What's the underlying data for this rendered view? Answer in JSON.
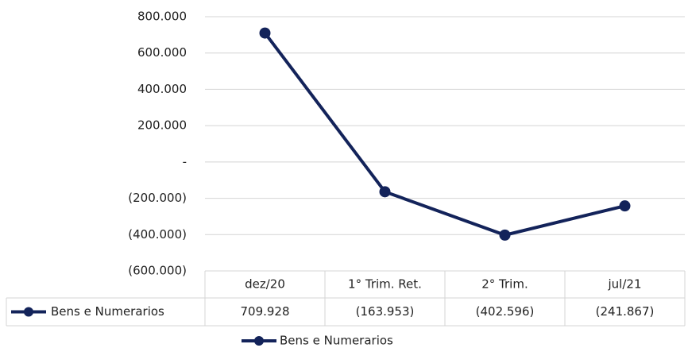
{
  "chart_data": {
    "type": "line",
    "categories": [
      "dez/20",
      "1° Trim. Ret.",
      "2° Trim.",
      "jul/21"
    ],
    "series": [
      {
        "name": "Bens e Numerarios",
        "color": "#13235a",
        "values": [
          709928,
          -163953,
          -402596,
          -241867
        ],
        "value_labels": [
          "709.928",
          "(163.953)",
          "(402.596)",
          "(241.867)"
        ]
      }
    ],
    "ylim": [
      -600000,
      800000
    ],
    "yticks": [
      {
        "value": -600000,
        "label": "(600.000)"
      },
      {
        "value": -400000,
        "label": "(400.000)"
      },
      {
        "value": -200000,
        "label": "(200.000)"
      },
      {
        "value": 0,
        "label": "-"
      },
      {
        "value": 200000,
        "label": "200.000"
      },
      {
        "value": 400000,
        "label": "400.000"
      },
      {
        "value": 600000,
        "label": "600.000"
      },
      {
        "value": 800000,
        "label": "800.000"
      }
    ],
    "grid": true,
    "data_table": true,
    "legend": "bottom"
  }
}
